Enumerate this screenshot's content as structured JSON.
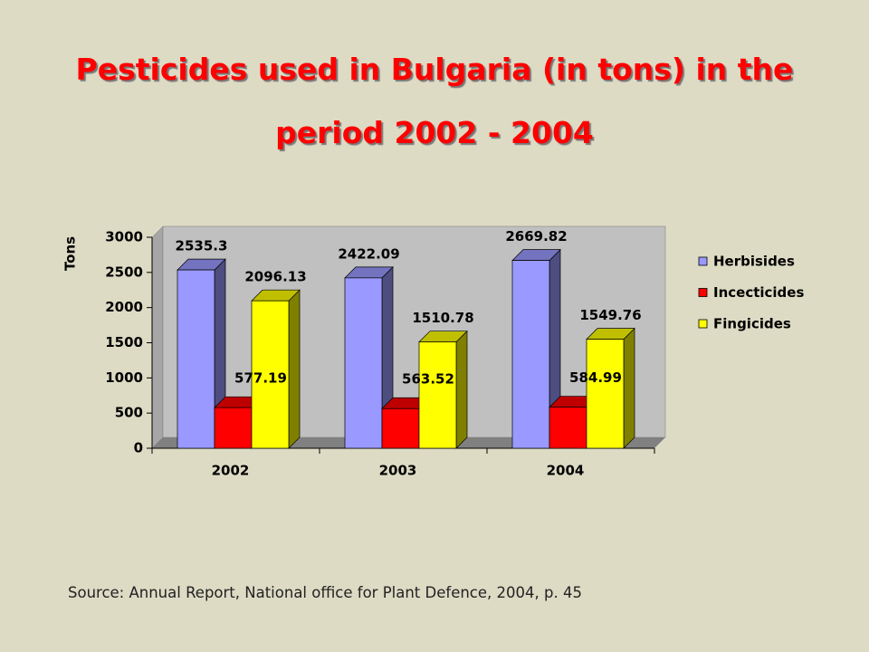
{
  "chart_data": {
    "type": "bar3d",
    "title": "Pesticides used in Bulgaria (in tons) in the period 2002 - 2004",
    "y_label": "Tons",
    "categories": [
      "2002",
      "2003",
      "2004"
    ],
    "series": [
      {
        "name": "Herbisides",
        "color": "#9999ff",
        "values": [
          2535.3,
          2422.09,
          2669.82
        ]
      },
      {
        "name": "Incecticides",
        "color": "#ff0000",
        "values": [
          577.19,
          563.52,
          584.99
        ]
      },
      {
        "name": "Fingicides",
        "color": "#ffff00",
        "values": [
          2096.13,
          1510.78,
          1549.76
        ]
      }
    ],
    "ylim": [
      0,
      3000
    ],
    "yticks": [
      0,
      500,
      1000,
      1500,
      2000,
      2500,
      3000
    ],
    "grid": false,
    "legend": "right",
    "source": "Source: Annual Report, National office for Plant Defence, 2004, p. 45"
  }
}
